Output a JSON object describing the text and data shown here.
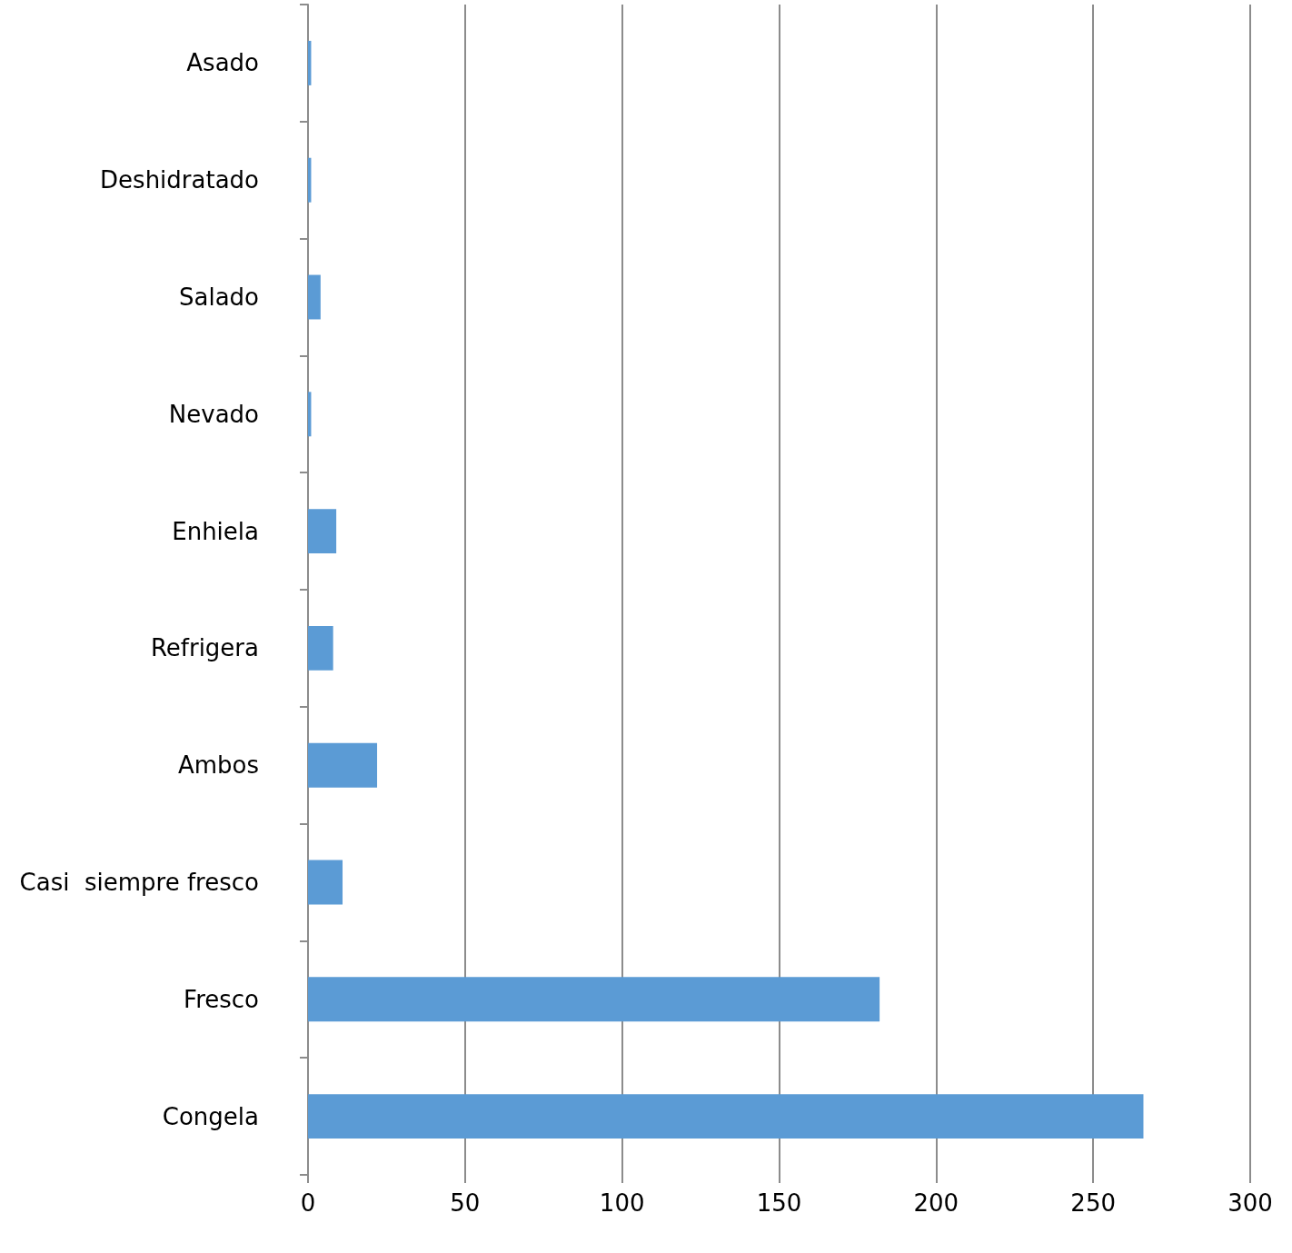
{
  "chart_data": {
    "type": "bar",
    "orientation": "horizontal",
    "categories": [
      "Asado",
      "Deshidratado",
      "Salado",
      "Nevado",
      "Enhiela",
      "Refrigera",
      "Ambos",
      "Casi  siempre fresco",
      "Fresco",
      "Congela"
    ],
    "values": [
      1,
      1,
      4,
      1,
      9,
      8,
      22,
      11,
      182,
      266
    ],
    "color": "#5b9bd5",
    "xlim": [
      0,
      300
    ],
    "xticks": [
      0,
      50,
      100,
      150,
      200,
      250,
      300
    ],
    "grid": "x"
  }
}
